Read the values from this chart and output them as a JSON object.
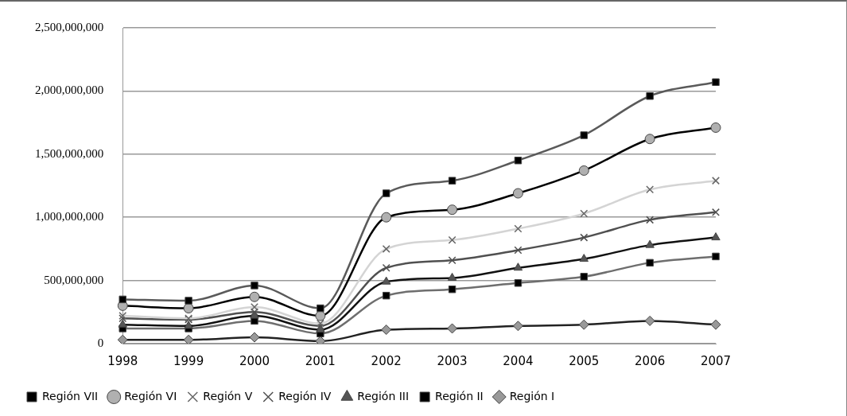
{
  "chart_data": {
    "type": "line",
    "categories": [
      "1998",
      "1999",
      "2000",
      "2001",
      "2002",
      "2003",
      "2004",
      "2005",
      "2006",
      "2007"
    ],
    "series": [
      {
        "name": "Región VII",
        "color": "#5a5a5a",
        "marker": "square",
        "values": [
          350000000,
          340000000,
          460000000,
          280000000,
          1190000000,
          1290000000,
          1450000000,
          1650000000,
          1960000000,
          2070000000
        ]
      },
      {
        "name": "Región VI",
        "color": "#000000",
        "marker": "circle",
        "values": [
          300000000,
          280000000,
          370000000,
          220000000,
          1000000000,
          1060000000,
          1190000000,
          1370000000,
          1620000000,
          1710000000
        ]
      },
      {
        "name": "Región V",
        "color": "#d4d4d4",
        "marker": "cross",
        "values": [
          220000000,
          200000000,
          290000000,
          160000000,
          750000000,
          820000000,
          910000000,
          1030000000,
          1220000000,
          1290000000
        ]
      },
      {
        "name": "Región IV",
        "color": "#505050",
        "marker": "cross",
        "values": [
          200000000,
          190000000,
          250000000,
          140000000,
          600000000,
          660000000,
          740000000,
          840000000,
          980000000,
          1040000000
        ]
      },
      {
        "name": "Región III",
        "color": "#111111",
        "marker": "triangle",
        "values": [
          150000000,
          140000000,
          220000000,
          110000000,
          490000000,
          520000000,
          600000000,
          670000000,
          780000000,
          840000000
        ]
      },
      {
        "name": "Región II",
        "color": "#6e6e6e",
        "marker": "square",
        "values": [
          120000000,
          120000000,
          180000000,
          80000000,
          380000000,
          430000000,
          480000000,
          530000000,
          640000000,
          690000000
        ]
      },
      {
        "name": "Región I",
        "color": "#222222",
        "marker": "diamond",
        "values": [
          30000000,
          30000000,
          50000000,
          20000000,
          110000000,
          120000000,
          140000000,
          150000000,
          180000000,
          150000000
        ]
      }
    ],
    "ylim": [
      0,
      2500000000
    ],
    "yticks": [
      0,
      {
        "value": 500000000,
        "label": "500,000,000"
      },
      {
        "value": 1000000000,
        "label": "1,000,000,000"
      },
      {
        "value": 1500000000,
        "label": "1,500,000,000"
      },
      {
        "value": 2000000000,
        "label": "2,000,000,000"
      },
      {
        "value": 2500000000,
        "label": "2,500,000,000"
      }
    ],
    "grid": "y",
    "legend": "bottom"
  }
}
